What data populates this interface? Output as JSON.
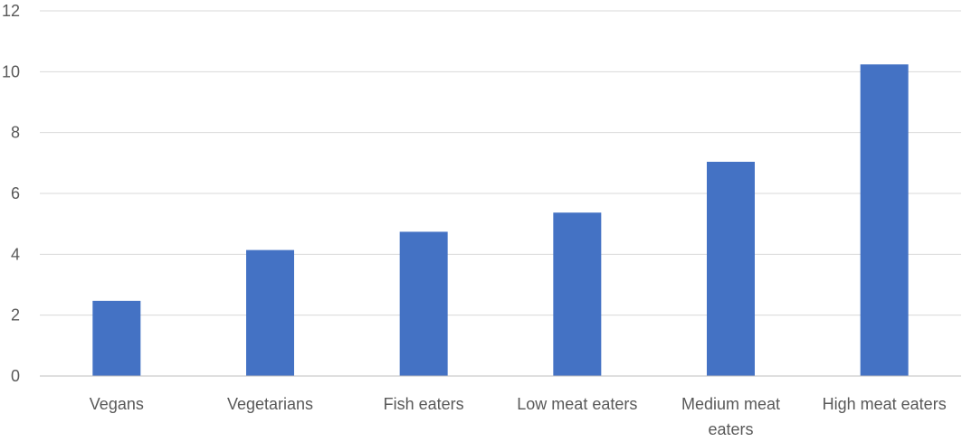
{
  "chart_data": {
    "type": "bar",
    "categories": [
      [
        "Vegans"
      ],
      [
        "Vegetarians"
      ],
      [
        "Fish eaters"
      ],
      [
        "Low meat eaters"
      ],
      [
        "Medium meat",
        "eaters"
      ],
      [
        "High meat eaters"
      ]
    ],
    "values": [
      2.47,
      4.14,
      4.74,
      5.37,
      7.04,
      10.24
    ],
    "ylim": [
      0,
      12
    ],
    "yticks": [
      "0",
      "2",
      "4",
      "6",
      "8",
      "10",
      "12"
    ],
    "grid": true,
    "legend": "none",
    "bar_color": "#4472c4"
  }
}
